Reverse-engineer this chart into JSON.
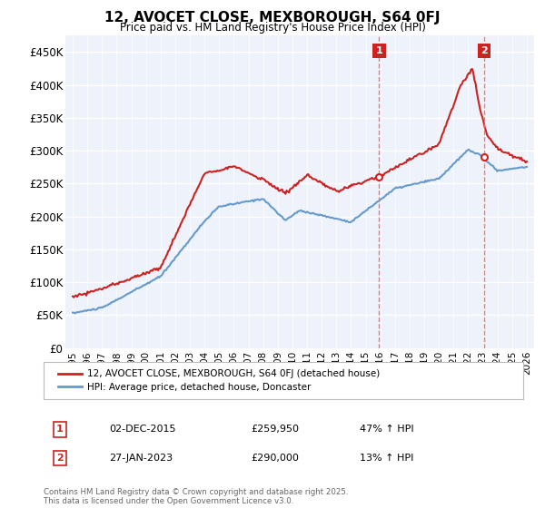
{
  "title": "12, AVOCET CLOSE, MEXBOROUGH, S64 0FJ",
  "subtitle": "Price paid vs. HM Land Registry's House Price Index (HPI)",
  "footer": "Contains HM Land Registry data © Crown copyright and database right 2025.\nThis data is licensed under the Open Government Licence v3.0.",
  "legend_line1": "12, AVOCET CLOSE, MEXBOROUGH, S64 0FJ (detached house)",
  "legend_line2": "HPI: Average price, detached house, Doncaster",
  "hpi_color": "#6699cc",
  "price_color": "#cc2222",
  "annotation_vline_color": "#ff6666",
  "ylim": [
    0,
    475000
  ],
  "yticks": [
    0,
    50000,
    100000,
    150000,
    200000,
    250000,
    300000,
    350000,
    400000,
    450000
  ],
  "ytick_labels": [
    "£0",
    "£50K",
    "£100K",
    "£150K",
    "£200K",
    "£250K",
    "£300K",
    "£350K",
    "£400K",
    "£450K"
  ],
  "sale1_date": 2015.92,
  "sale1_price": 259950,
  "sale2_date": 2023.08,
  "sale2_price": 290000,
  "sale1_info": [
    "1",
    "02-DEC-2015",
    "£259,950",
    "47% ↑ HPI"
  ],
  "sale2_info": [
    "2",
    "27-JAN-2023",
    "£290,000",
    "13% ↑ HPI"
  ],
  "bg_color": "#ffffff",
  "plot_bg_color": "#eef2fb",
  "grid_color": "#ffffff"
}
